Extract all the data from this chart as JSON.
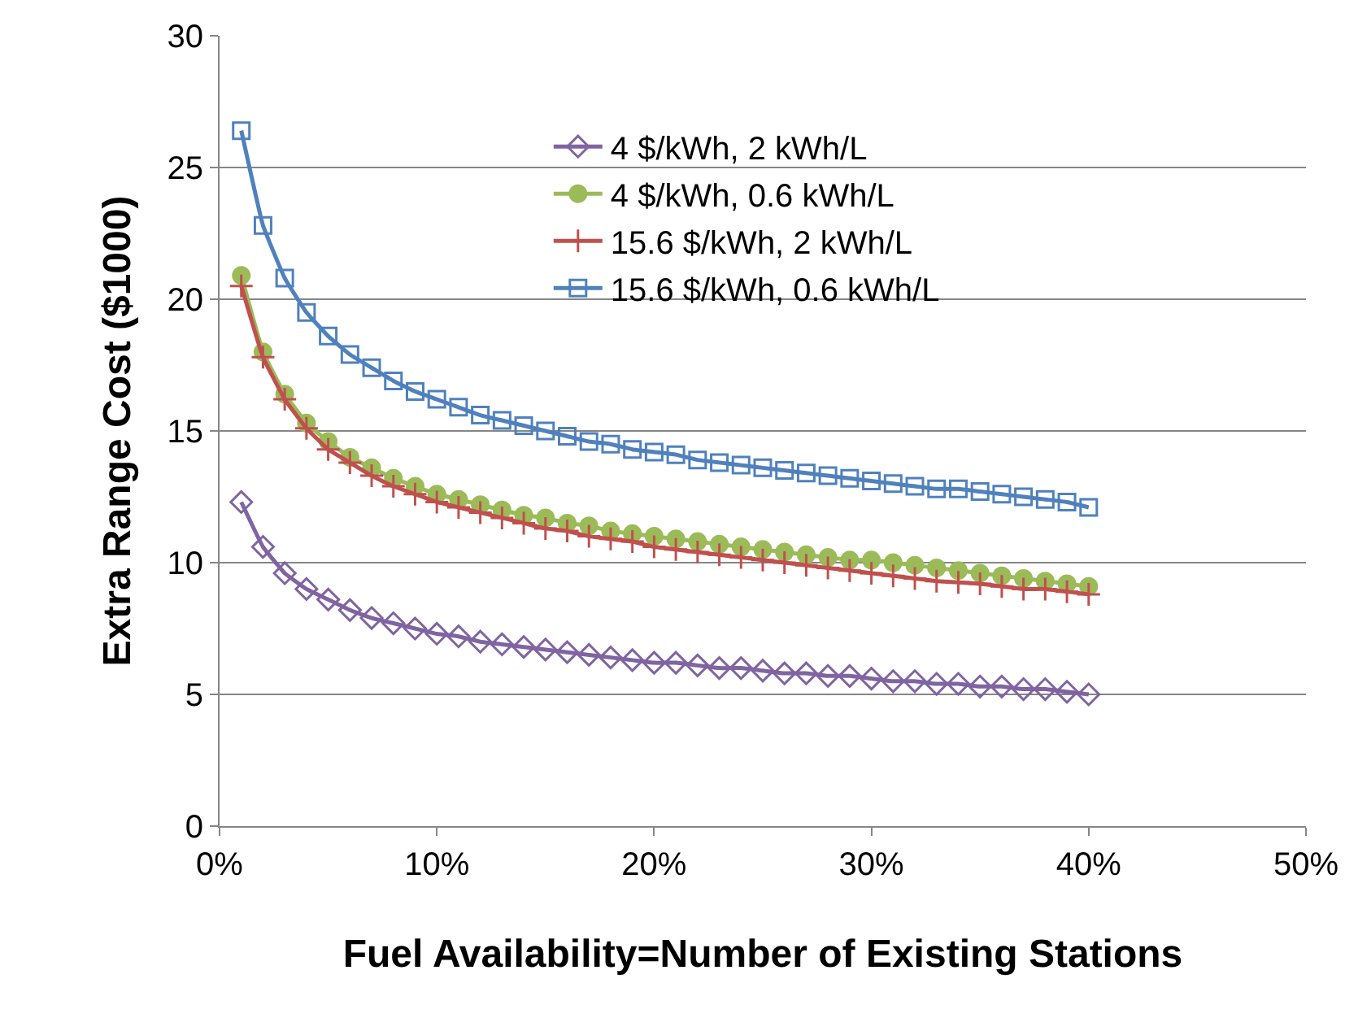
{
  "chart_data": {
    "type": "line",
    "xlabel": "Fuel Availability=Number of Existing Stations",
    "ylabel": "Extra Range Cost ($1000)",
    "x": [
      1,
      2,
      3,
      4,
      5,
      6,
      7,
      8,
      9,
      10,
      11,
      12,
      13,
      14,
      15,
      16,
      17,
      18,
      19,
      20,
      21,
      22,
      23,
      24,
      25,
      26,
      27,
      28,
      29,
      30,
      31,
      32,
      33,
      34,
      35,
      36,
      37,
      38,
      39,
      40
    ],
    "xlim": [
      0,
      50
    ],
    "xticks": [
      {
        "value": 0,
        "label": "0%"
      },
      {
        "value": 10,
        "label": "10%"
      },
      {
        "value": 20,
        "label": "20%"
      },
      {
        "value": 30,
        "label": "30%"
      },
      {
        "value": 40,
        "label": "40%"
      },
      {
        "value": 50,
        "label": "50%"
      }
    ],
    "ylim": [
      0,
      30
    ],
    "yticks": [
      0,
      5,
      10,
      15,
      20,
      25,
      30
    ],
    "grid": "y",
    "legend": "top right",
    "line_style": "solid",
    "series": [
      {
        "name": "4 $/kWh, 2 kWh/L",
        "color": "#8064a2",
        "marker": "diamond",
        "values": [
          12.3,
          10.6,
          9.6,
          9.0,
          8.6,
          8.2,
          7.9,
          7.7,
          7.5,
          7.3,
          7.2,
          7.0,
          6.9,
          6.8,
          6.7,
          6.6,
          6.5,
          6.4,
          6.3,
          6.2,
          6.2,
          6.1,
          6.0,
          6.0,
          5.9,
          5.8,
          5.8,
          5.7,
          5.7,
          5.6,
          5.5,
          5.5,
          5.4,
          5.4,
          5.3,
          5.3,
          5.2,
          5.2,
          5.1,
          5.0
        ]
      },
      {
        "name": "4 $/kWh, 0.6 kWh/L",
        "color": "#9bbb59",
        "marker": "circle",
        "values": [
          20.9,
          18.0,
          16.4,
          15.3,
          14.6,
          14.0,
          13.6,
          13.2,
          12.9,
          12.6,
          12.4,
          12.2,
          12.0,
          11.8,
          11.7,
          11.5,
          11.4,
          11.2,
          11.1,
          11.0,
          10.9,
          10.8,
          10.7,
          10.6,
          10.5,
          10.4,
          10.3,
          10.2,
          10.1,
          10.1,
          10.0,
          9.9,
          9.8,
          9.7,
          9.6,
          9.5,
          9.4,
          9.3,
          9.2,
          9.1
        ]
      },
      {
        "name": "15.6 $/kWh, 2 kWh/L",
        "color": "#c0504d",
        "marker": "cross",
        "values": [
          20.5,
          17.8,
          16.2,
          15.1,
          14.3,
          13.8,
          13.3,
          12.9,
          12.6,
          12.3,
          12.1,
          11.9,
          11.7,
          11.5,
          11.3,
          11.2,
          11.0,
          10.9,
          10.8,
          10.6,
          10.5,
          10.4,
          10.3,
          10.2,
          10.1,
          10.0,
          9.9,
          9.8,
          9.7,
          9.6,
          9.5,
          9.4,
          9.3,
          9.25,
          9.2,
          9.1,
          9.0,
          9.0,
          8.9,
          8.8
        ]
      },
      {
        "name": "15.6 $/kWh, 0.6 kWh/L",
        "color": "#4f81bd",
        "marker": "square",
        "values": [
          26.4,
          22.8,
          20.8,
          19.5,
          18.6,
          17.9,
          17.4,
          16.9,
          16.5,
          16.2,
          15.9,
          15.6,
          15.4,
          15.2,
          15.0,
          14.8,
          14.6,
          14.5,
          14.3,
          14.2,
          14.1,
          13.9,
          13.8,
          13.7,
          13.6,
          13.5,
          13.4,
          13.3,
          13.2,
          13.1,
          13.0,
          12.9,
          12.8,
          12.8,
          12.7,
          12.6,
          12.5,
          12.4,
          12.3,
          12.1
        ]
      }
    ]
  }
}
